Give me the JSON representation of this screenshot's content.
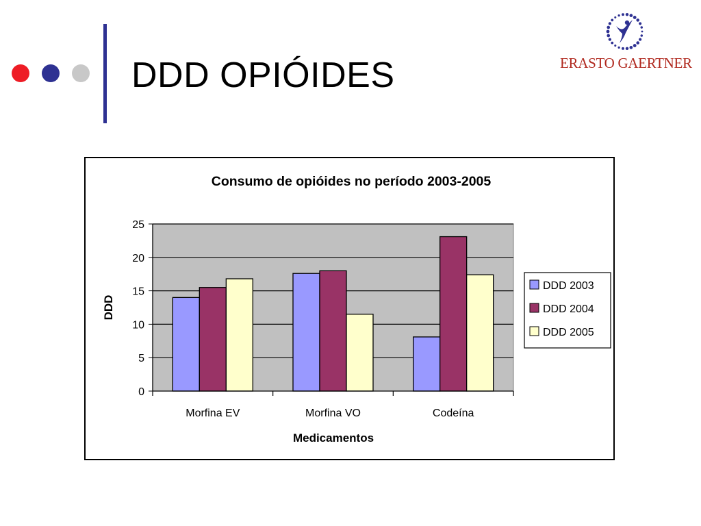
{
  "slide": {
    "title": "DDD OPIÓIDES",
    "bullet_colors": [
      "#ee1c25",
      "#2e3192",
      "#c8c8c8"
    ],
    "accent_bar_color": "#2e3192"
  },
  "logo": {
    "text": "ERASTO GAERTNER",
    "icon": "human-figure-icon",
    "dot_color": "#2e3192",
    "text_color": "#b0281e"
  },
  "chart_data": {
    "type": "bar",
    "title": "Consumo de opióides no período 2003-2005",
    "xlabel": "Medicamentos",
    "ylabel": "DDD",
    "categories": [
      "Morfina EV",
      "Morfina VO",
      "Codeína"
    ],
    "series": [
      {
        "name": "DDD 2003",
        "color": "#9999ff",
        "values": [
          14.0,
          17.6,
          8.1
        ]
      },
      {
        "name": "DDD 2004",
        "color": "#993366",
        "values": [
          15.5,
          18.0,
          23.1
        ]
      },
      {
        "name": "DDD 2005",
        "color": "#ffffcc",
        "values": [
          16.8,
          11.5,
          17.4
        ]
      }
    ],
    "ylim": [
      0,
      25
    ],
    "yticks": [
      "0",
      "5",
      "10",
      "15",
      "20",
      "25"
    ],
    "grid": true,
    "plot_background": "#c0c0c0",
    "legend_position": "right"
  }
}
